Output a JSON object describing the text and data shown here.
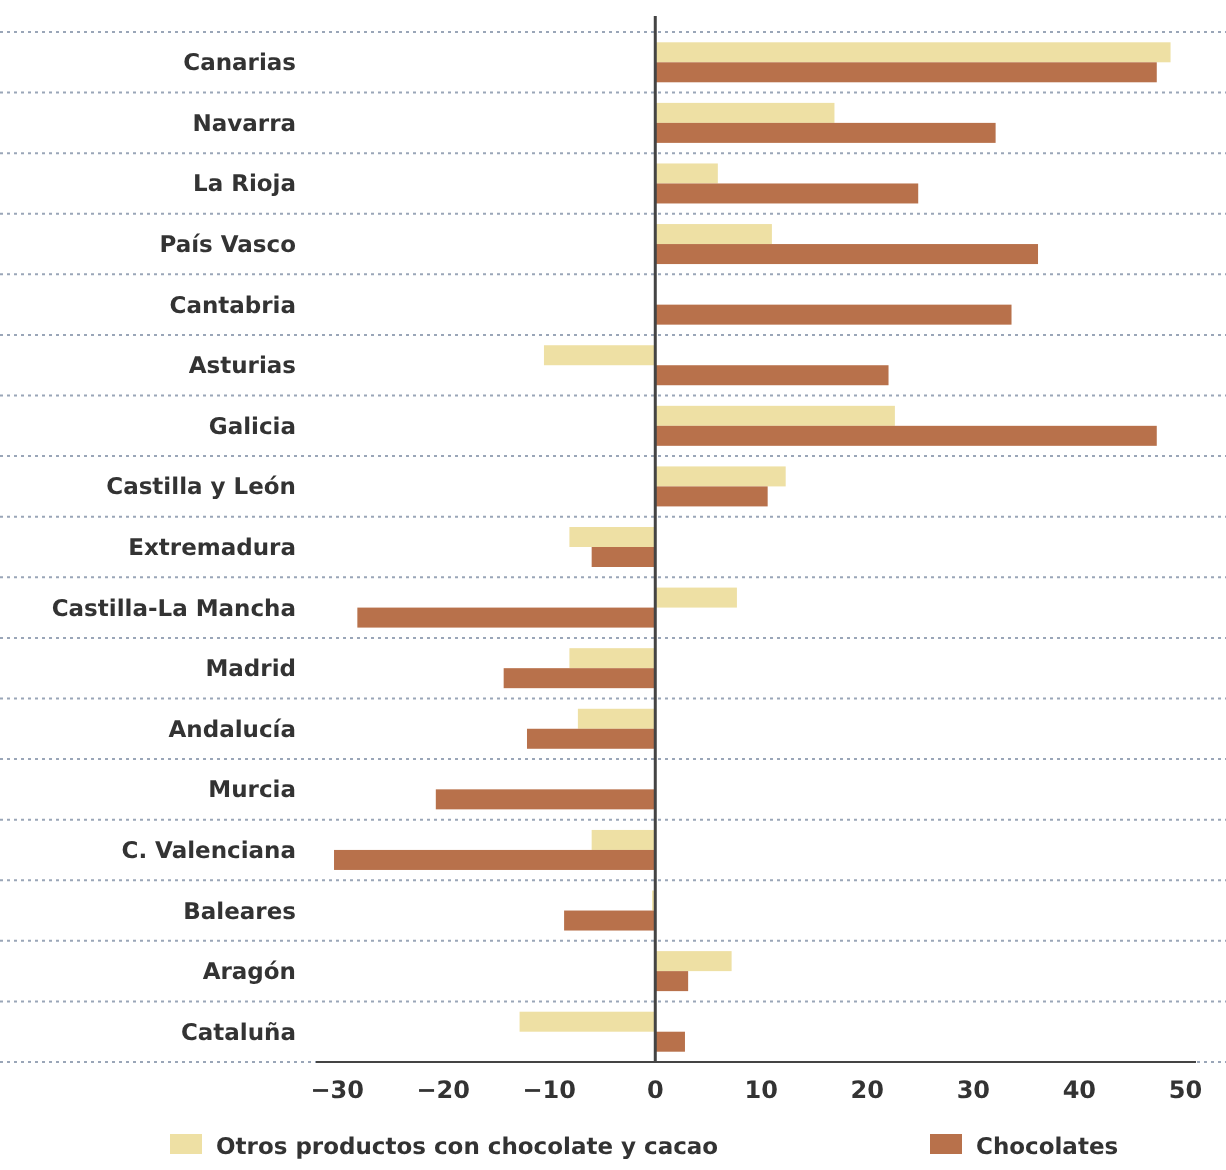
{
  "chart_data": {
    "type": "bar",
    "orientation": "horizontal",
    "categories": [
      "Canarias",
      "Navarra",
      "La Rioja",
      "País Vasco",
      "Cantabria",
      "Asturias",
      "Galicia",
      "Castilla y León",
      "Extremadura",
      "Castilla-La Mancha",
      "Madrid",
      "Andalucía",
      "Murcia",
      "C. Valenciana",
      "Baleares",
      "Aragón",
      "Cataluña"
    ],
    "series": [
      {
        "name": "Otros productos con chocolate y cacao",
        "color": "#eee0a4",
        "values": [
          48.6,
          16.9,
          5.9,
          11,
          0,
          -10.5,
          22.6,
          12.3,
          -8.1,
          7.7,
          -8.1,
          -7.3,
          0,
          -6,
          -0.3,
          7.2,
          -12.8
        ]
      },
      {
        "name": "Chocolates",
        "color": "#b8714b",
        "values": [
          47.3,
          32.1,
          24.8,
          36.1,
          33.6,
          22,
          47.3,
          10.6,
          -6,
          -28.1,
          -14.3,
          -12.1,
          -20.7,
          -30.3,
          -8.6,
          3.1,
          2.8
        ]
      }
    ],
    "xlim": [
      -32,
      51
    ],
    "xticks": [
      -30,
      -20,
      -10,
      0,
      10,
      20,
      30,
      40,
      50
    ],
    "grid": "y",
    "legend": "bottom"
  }
}
